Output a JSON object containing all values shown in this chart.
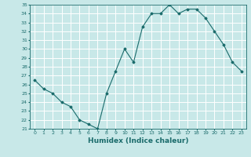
{
  "x": [
    0,
    1,
    2,
    3,
    4,
    5,
    6,
    7,
    8,
    9,
    10,
    11,
    12,
    13,
    14,
    15,
    16,
    17,
    18,
    19,
    20,
    21,
    22,
    23
  ],
  "y": [
    26.5,
    25.5,
    25.0,
    24.0,
    23.5,
    22.0,
    21.5,
    21.0,
    25.0,
    27.5,
    30.0,
    28.5,
    32.5,
    34.0,
    34.0,
    35.0,
    34.0,
    34.5,
    34.5,
    33.5,
    32.0,
    30.5,
    28.5,
    27.5
  ],
  "line_color": "#1a6b6b",
  "marker": "D",
  "marker_size": 1.5,
  "bg_color": "#c8e8e8",
  "grid_color": "#ffffff",
  "xlabel": "Humidex (Indice chaleur)",
  "ylim": [
    21,
    35
  ],
  "xlim": [
    -0.5,
    23.5
  ],
  "yticks": [
    21,
    22,
    23,
    24,
    25,
    26,
    27,
    28,
    29,
    30,
    31,
    32,
    33,
    34,
    35
  ],
  "xticks": [
    0,
    1,
    2,
    3,
    4,
    5,
    6,
    7,
    8,
    9,
    10,
    11,
    12,
    13,
    14,
    15,
    16,
    17,
    18,
    19,
    20,
    21,
    22,
    23
  ],
  "tick_color": "#1a6b6b",
  "xlabel_fontsize": 6.5,
  "tick_fontsize": 4.5,
  "linewidth": 0.8
}
